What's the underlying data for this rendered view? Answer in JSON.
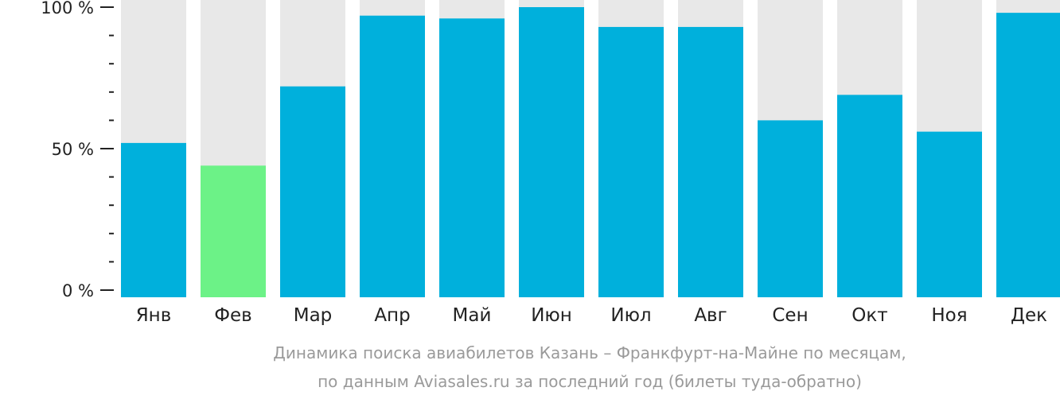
{
  "chart_data": {
    "type": "bar",
    "categories": [
      "Янв",
      "Фев",
      "Мар",
      "Апр",
      "Май",
      "Июн",
      "Июл",
      "Авг",
      "Сен",
      "Окт",
      "Ноя",
      "Дек"
    ],
    "values": [
      52,
      44,
      72,
      97,
      96,
      100,
      93,
      93,
      60,
      69,
      56,
      98
    ],
    "ylim": [
      0,
      100
    ],
    "yticks": [
      "0 %",
      "50 %",
      "100 %"
    ],
    "highlight_index": 1,
    "caption_lines": [
      "Динамика поиска авиабилетов Казань – Франкфурт-на-Майне по месяцам,",
      "по данным Aviasales.ru за последний год (билеты туда-обратно)"
    ],
    "colors": {
      "bar": "#00b0dc",
      "highlight": "#6cf287",
      "track": "#e8e8e8",
      "axis": "#222222"
    }
  }
}
